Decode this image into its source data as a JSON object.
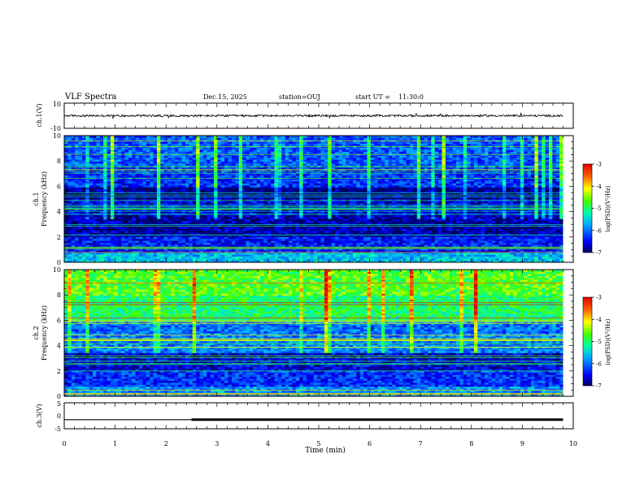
{
  "header": {
    "title": "VLF Spectra",
    "date": "Dec.15, 2025",
    "station": "station=OUJ",
    "start_label": "start  UT =",
    "start_time": "11:30:0"
  },
  "chart_data": [
    {
      "type": "line",
      "panel": "ch1-waveform",
      "ylabel": "ch.1(V)",
      "ylim": [
        -10,
        10
      ],
      "yticks": [
        "10",
        "-10"
      ],
      "signal": {
        "baseline": 0,
        "amplitude": 0.8,
        "t_end": 9.8
      }
    },
    {
      "type": "heatmap",
      "panel": "ch1-spectrogram",
      "ylabel": "ch.1",
      "ylabel2": "Frequency (kHz)",
      "ylim": [
        0,
        10
      ],
      "yticks": [
        "0",
        "2",
        "4",
        "6",
        "8",
        "10"
      ],
      "t_end": 9.8,
      "bands": [
        {
          "f0": 0,
          "f1": 0.8,
          "level": -5.6
        },
        {
          "f0": 0.8,
          "f1": 2,
          "level": -6.4
        },
        {
          "f0": 2,
          "f1": 3.8,
          "level": -6.8
        },
        {
          "f0": 3.8,
          "f1": 5,
          "level": -6.6
        },
        {
          "f0": 5,
          "f1": 6,
          "level": -6.9
        },
        {
          "f0": 6,
          "f1": 7.5,
          "level": -6.3
        },
        {
          "f0": 7.5,
          "f1": 10,
          "level": -6.1
        }
      ],
      "colorbar": {
        "label": "log(PSD)(V²/Hz)",
        "range": [
          -7,
          -3
        ],
        "ticks": [
          "-3",
          "-4",
          "-5",
          "-6",
          "-7"
        ]
      }
    },
    {
      "type": "heatmap",
      "panel": "ch2-spectrogram",
      "ylabel": "ch.2",
      "ylabel2": "Frequency (kHz)",
      "ylim": [
        0,
        10
      ],
      "yticks": [
        "0",
        "2",
        "4",
        "6",
        "8",
        "10"
      ],
      "t_end": 9.8,
      "bands": [
        {
          "f0": 0,
          "f1": 0.8,
          "level": -5.8
        },
        {
          "f0": 0.8,
          "f1": 2,
          "level": -6.3
        },
        {
          "f0": 2,
          "f1": 3.5,
          "level": -6.6
        },
        {
          "f0": 3.5,
          "f1": 5,
          "level": -5.9
        },
        {
          "f0": 5,
          "f1": 6,
          "level": -6.0
        },
        {
          "f0": 6,
          "f1": 8,
          "level": -5.0
        },
        {
          "f0": 8,
          "f1": 10,
          "level": -4.7
        }
      ],
      "colorbar": {
        "label": "log(PSD)(V²/Hz)",
        "range": [
          -7,
          -3
        ],
        "ticks": [
          "-3",
          "-4",
          "-5",
          "-6",
          "-7"
        ]
      }
    },
    {
      "type": "line",
      "panel": "ch3-waveform",
      "ylabel": "ch.3(V)",
      "ylim": [
        -5,
        5
      ],
      "yticks": [
        "5",
        "0",
        "-5"
      ],
      "signal": {
        "level": -1.5,
        "thicken_from": 2.5,
        "t_end": 9.8
      }
    }
  ],
  "time_axis": {
    "xlabel": "Time (min)",
    "xlim": [
      0,
      10
    ],
    "ticks": [
      "0",
      "1",
      "2",
      "3",
      "4",
      "5",
      "6",
      "7",
      "8",
      "9",
      "10"
    ]
  }
}
